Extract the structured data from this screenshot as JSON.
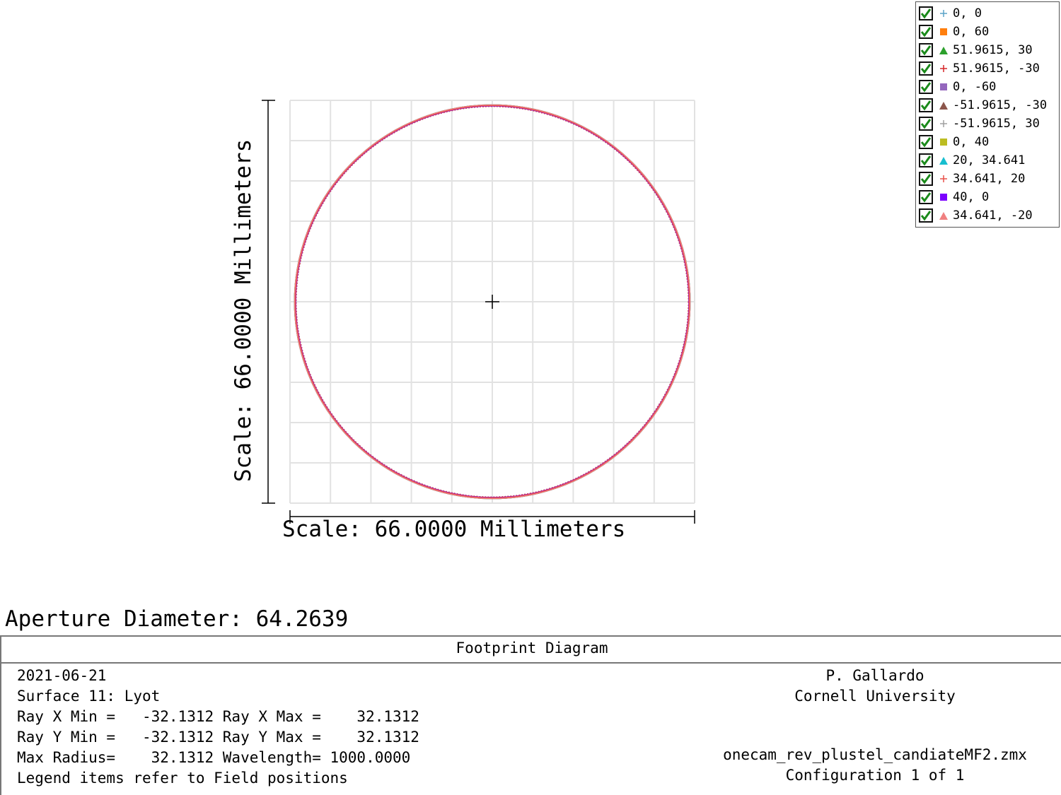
{
  "chart_data": {
    "type": "scatter",
    "title": "Footprint Diagram",
    "x_scale_label": "Scale: 66.0000 Millimeters",
    "y_scale_label": "Scale: 66.0000 Millimeters",
    "xlim": [
      -33,
      33
    ],
    "ylim": [
      -33,
      33
    ],
    "grid": true,
    "footprint_radius": 32.1312,
    "legend_position": "top-right",
    "series": [
      {
        "name": "0, 0",
        "marker": "plus",
        "color": "#5ba3c8"
      },
      {
        "name": "0, 60",
        "marker": "square",
        "color": "#ff7f0e"
      },
      {
        "name": "51.9615, 30",
        "marker": "triangle",
        "color": "#2ca02c"
      },
      {
        "name": "51.9615, -30",
        "marker": "plus",
        "color": "#d62728"
      },
      {
        "name": "0, -60",
        "marker": "square",
        "color": "#9467bd"
      },
      {
        "name": "-51.9615, -30",
        "marker": "triangle",
        "color": "#8c564b"
      },
      {
        "name": "-51.9615, 30",
        "marker": "plus",
        "color": "#a0a0a0"
      },
      {
        "name": "0, 40",
        "marker": "square",
        "color": "#bcbd22"
      },
      {
        "name": "20, 34.641",
        "marker": "triangle",
        "color": "#17becf"
      },
      {
        "name": "34.641, 20",
        "marker": "plus",
        "color": "#e8504a"
      },
      {
        "name": "40, 0",
        "marker": "square",
        "color": "#7b00ff"
      },
      {
        "name": "34.641, -20",
        "marker": "triangle",
        "color": "#f08080"
      }
    ]
  },
  "aperture": "Aperture Diameter: 64.2639",
  "footer": {
    "title": "Footprint Diagram",
    "left_lines": [
      "2021-06-21",
      "Surface 11: Lyot",
      "Ray X Min =   -32.1312 Ray X Max =    32.1312",
      "Ray Y Min =   -32.1312 Ray Y Max =    32.1312",
      "Max Radius=    32.1312 Wavelength= 1000.0000",
      "Legend items refer to Field positions"
    ],
    "author": "P. Gallardo",
    "org": "Cornell University",
    "file": "onecam_rev_plustel_candiateMF2.zmx",
    "config": "Configuration 1 of 1"
  }
}
